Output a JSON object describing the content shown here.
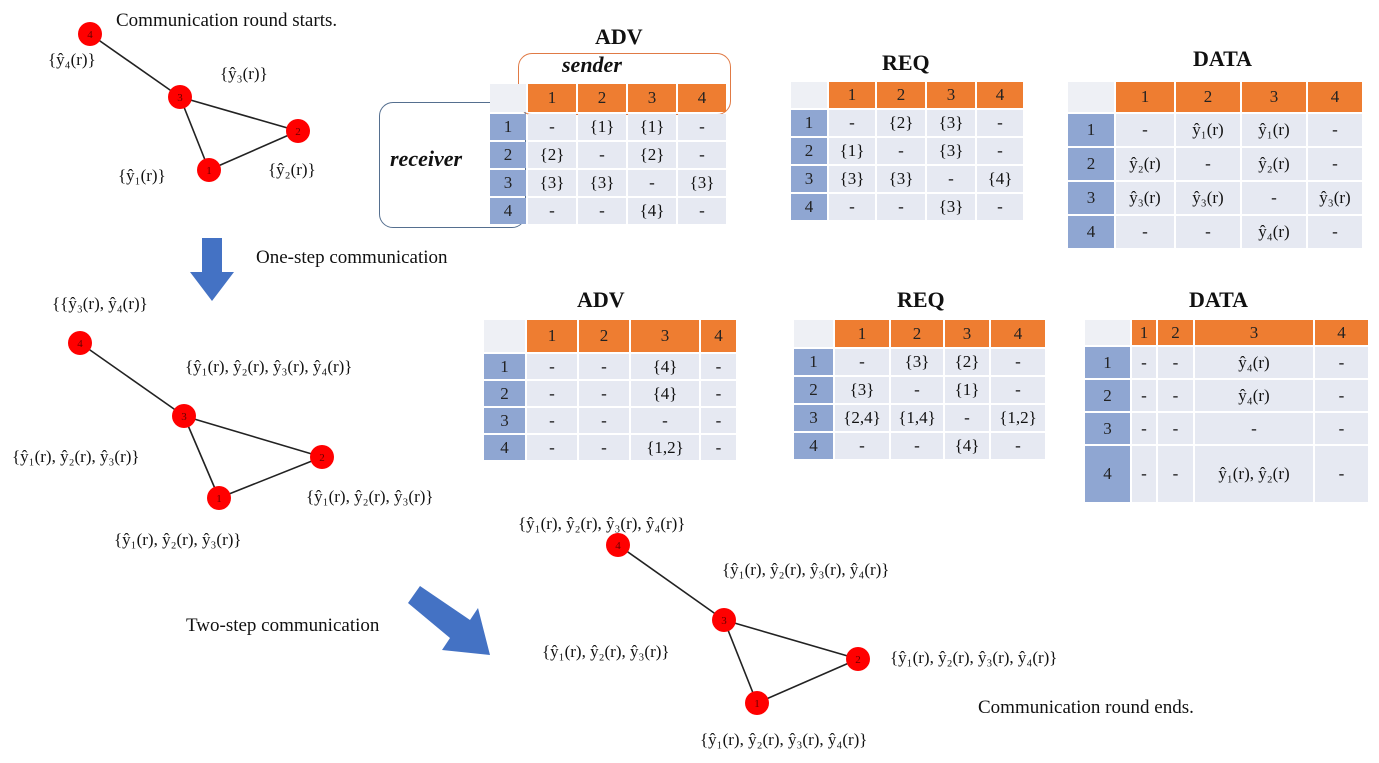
{
  "captions": {
    "start": "Communication round starts.",
    "one_step": "One-step communication",
    "two_step": "Two-step communication",
    "end": "Communication round ends."
  },
  "axis_labels": {
    "sender": "sender",
    "receiver": "receiver"
  },
  "colors": {
    "node": "#ff0000",
    "header": "#ee7d31",
    "row_header": "#8fa6d2",
    "cell": "#e6e9f2",
    "arrow": "#4472c4"
  },
  "graph1": {
    "nodes": [
      "1",
      "2",
      "3",
      "4"
    ],
    "labels": {
      "n1": "{ŷ₁(r)}",
      "n2": "{ŷ₂(r)}",
      "n3": "{ŷ₃(r)}",
      "n4": "{ŷ₄(r)}"
    }
  },
  "graph2": {
    "nodes": [
      "1",
      "2",
      "3",
      "4"
    ],
    "labels": {
      "n1": "{ŷ₁(r), ŷ₂(r), ŷ₃(r)}",
      "n2": "{ŷ₁(r), ŷ₂(r), ŷ₃(r)}",
      "n3": "{ŷ₁(r), ŷ₂(r), ŷ₃(r), ŷ₄(r)}",
      "n4": "{{ŷ₃(r), ŷ₄(r)}",
      "n3left": "{ŷ₁(r), ŷ₂(r), ŷ₃(r)}"
    }
  },
  "graph3": {
    "nodes": [
      "1",
      "2",
      "3",
      "4"
    ],
    "labels": {
      "n1": "{ŷ₁(r), ŷ₂(r), ŷ₃(r), ŷ₄(r)}",
      "n2": "{ŷ₁(r), ŷ₂(r), ŷ₃(r), ŷ₄(r)}",
      "n3": "{ŷ₁(r), ŷ₂(r), ŷ₃(r), ŷ₄(r)}",
      "n4": "{ŷ₁(r), ŷ₂(r), ŷ₃(r), ŷ₄(r)}",
      "n3left": "{ŷ₁(r), ŷ₂(r), ŷ₃(r)}"
    }
  },
  "tables": [
    {
      "id": "adv1",
      "title": "ADV",
      "headers": [
        "1",
        "2",
        "3",
        "4"
      ],
      "rows": [
        [
          "1",
          "-",
          "{1}",
          "{1}",
          "-"
        ],
        [
          "2",
          "{2}",
          "-",
          "{2}",
          "-"
        ],
        [
          "3",
          "{3}",
          "{3}",
          "-",
          "{3}"
        ],
        [
          "4",
          "-",
          "-",
          "{4}",
          "-"
        ]
      ]
    },
    {
      "id": "req1",
      "title": "REQ",
      "headers": [
        "1",
        "2",
        "3",
        "4"
      ],
      "rows": [
        [
          "1",
          "-",
          "{2}",
          "{3}",
          "-"
        ],
        [
          "2",
          "{1}",
          "-",
          "{3}",
          "-"
        ],
        [
          "3",
          "{3}",
          "{3}",
          "-",
          "{4}"
        ],
        [
          "4",
          "-",
          "-",
          "{3}",
          "-"
        ]
      ]
    },
    {
      "id": "data1",
      "title": "DATA",
      "headers": [
        "1",
        "2",
        "3",
        "4"
      ],
      "rows": [
        [
          "1",
          "-",
          "ŷ₁(r)",
          "ŷ₁(r)",
          "-"
        ],
        [
          "2",
          "ŷ₂(r)",
          "-",
          "ŷ₂(r)",
          "-"
        ],
        [
          "3",
          "ŷ₃(r)",
          "ŷ₃(r)",
          "-",
          "ŷ₃(r)"
        ],
        [
          "4",
          "-",
          "-",
          "ŷ₄(r)",
          "-"
        ]
      ]
    },
    {
      "id": "adv2",
      "title": "ADV",
      "headers": [
        "1",
        "2",
        "3",
        "4"
      ],
      "rows": [
        [
          "1",
          "-",
          "-",
          "{4}",
          "-"
        ],
        [
          "2",
          "-",
          "-",
          "{4}",
          "-"
        ],
        [
          "3",
          "-",
          "-",
          "-",
          "-"
        ],
        [
          "4",
          "-",
          "-",
          "{1,2}",
          "-"
        ]
      ]
    },
    {
      "id": "req2",
      "title": "REQ",
      "headers": [
        "1",
        "2",
        "3",
        "4"
      ],
      "rows": [
        [
          "1",
          "-",
          "{3}",
          "{2}",
          "-"
        ],
        [
          "2",
          "{3}",
          "-",
          "{1}",
          "-"
        ],
        [
          "3",
          "{2,4}",
          "{1,4}",
          "-",
          "{1,2}"
        ],
        [
          "4",
          "-",
          "-",
          "{4}",
          "-"
        ]
      ]
    },
    {
      "id": "data2",
      "title": "DATA",
      "headers": [
        "1",
        "2",
        "3",
        "4"
      ],
      "rows": [
        [
          "1",
          "-",
          "-",
          "ŷ₄(r)",
          "-"
        ],
        [
          "2",
          "-",
          "-",
          "ŷ₄(r)",
          "-"
        ],
        [
          "3",
          "-",
          "-",
          "-",
          "-"
        ],
        [
          "4",
          "-",
          "-",
          "ŷ₁(r), ŷ₂(r)",
          "-"
        ]
      ]
    }
  ]
}
